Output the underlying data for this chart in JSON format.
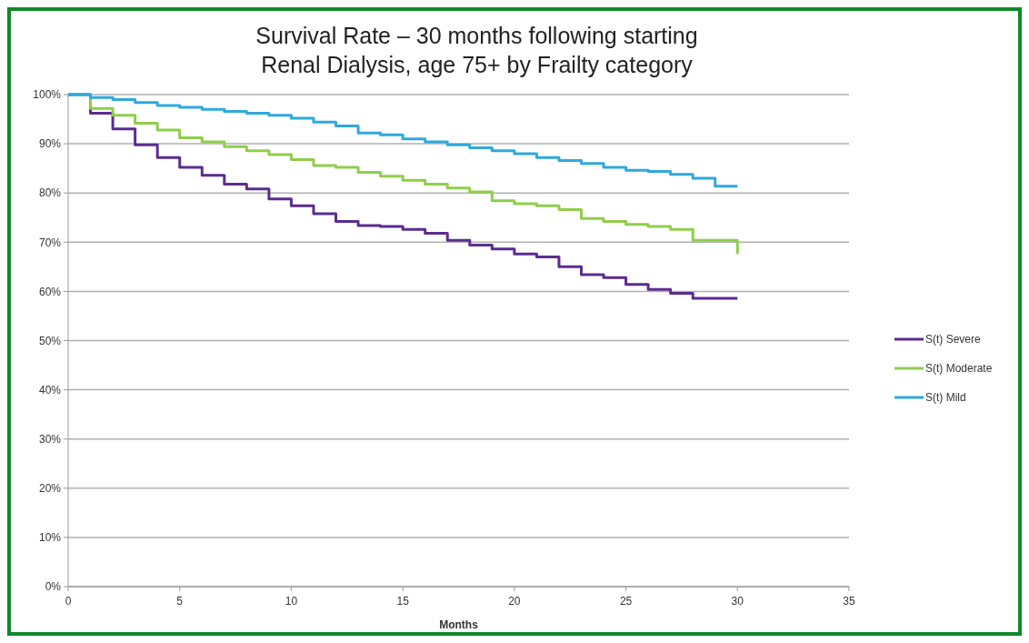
{
  "chart_data": {
    "type": "step",
    "title": "Survival Rate – 30 months following starting\nRenal Dialysis, age 75+ by Frailty category",
    "xlabel": "Months",
    "x": [
      0,
      1,
      2,
      3,
      4,
      5,
      6,
      7,
      8,
      9,
      10,
      11,
      12,
      13,
      14,
      15,
      16,
      17,
      18,
      19,
      20,
      21,
      22,
      23,
      24,
      25,
      26,
      27,
      28,
      29,
      30
    ],
    "series": [
      {
        "name": "S(t) Severe",
        "color": "#5b2c8f",
        "values": [
          100,
          96.2,
          93,
          89.8,
          87.2,
          85.2,
          83.6,
          81.8,
          80.8,
          78.8,
          77.4,
          75.8,
          74.2,
          73.4,
          73.2,
          72.6,
          71.8,
          70.4,
          69.4,
          68.6,
          67.6,
          67,
          65,
          63.4,
          62.8,
          61.4,
          60.4,
          59.6,
          58.6,
          58.6,
          58.6
        ]
      },
      {
        "name": "S(t) Moderate",
        "color": "#8fce4a",
        "values": [
          100,
          97.2,
          95.8,
          94.2,
          92.8,
          91.2,
          90.4,
          89.4,
          88.6,
          87.8,
          86.8,
          85.6,
          85.2,
          84.2,
          83.4,
          82.6,
          81.8,
          81,
          80.2,
          78.4,
          77.8,
          77.4,
          76.6,
          74.8,
          74.2,
          73.6,
          73.2,
          72.6,
          70.4,
          70.4,
          67.6
        ]
      },
      {
        "name": "S(t) Mild",
        "color": "#2fa9dc",
        "values": [
          100,
          99.4,
          99,
          98.4,
          97.8,
          97.4,
          97,
          96.6,
          96.2,
          95.8,
          95.2,
          94.4,
          93.6,
          92.2,
          91.8,
          91,
          90.4,
          89.8,
          89.2,
          88.6,
          88,
          87.2,
          86.6,
          86,
          85.2,
          84.6,
          84.4,
          83.8,
          83,
          81.4,
          81.4
        ]
      }
    ],
    "xlim": [
      0,
      35
    ],
    "xticks": [
      0,
      5,
      10,
      15,
      20,
      25,
      30,
      35
    ],
    "ylim": [
      0,
      100
    ],
    "yticks": [
      {
        "value": 0,
        "label": "0%"
      },
      {
        "value": 10,
        "label": "10%"
      },
      {
        "value": 20,
        "label": "20%"
      },
      {
        "value": 30,
        "label": "30%"
      },
      {
        "value": 40,
        "label": "40%"
      },
      {
        "value": 50,
        "label": "50%"
      },
      {
        "value": 60,
        "label": "60%"
      },
      {
        "value": 70,
        "label": "70%"
      },
      {
        "value": 80,
        "label": "80%"
      },
      {
        "value": 90,
        "label": "90%"
      },
      {
        "value": 100,
        "label": "100%"
      }
    ],
    "grid": "y",
    "legend": "right",
    "line_style": "solid"
  }
}
